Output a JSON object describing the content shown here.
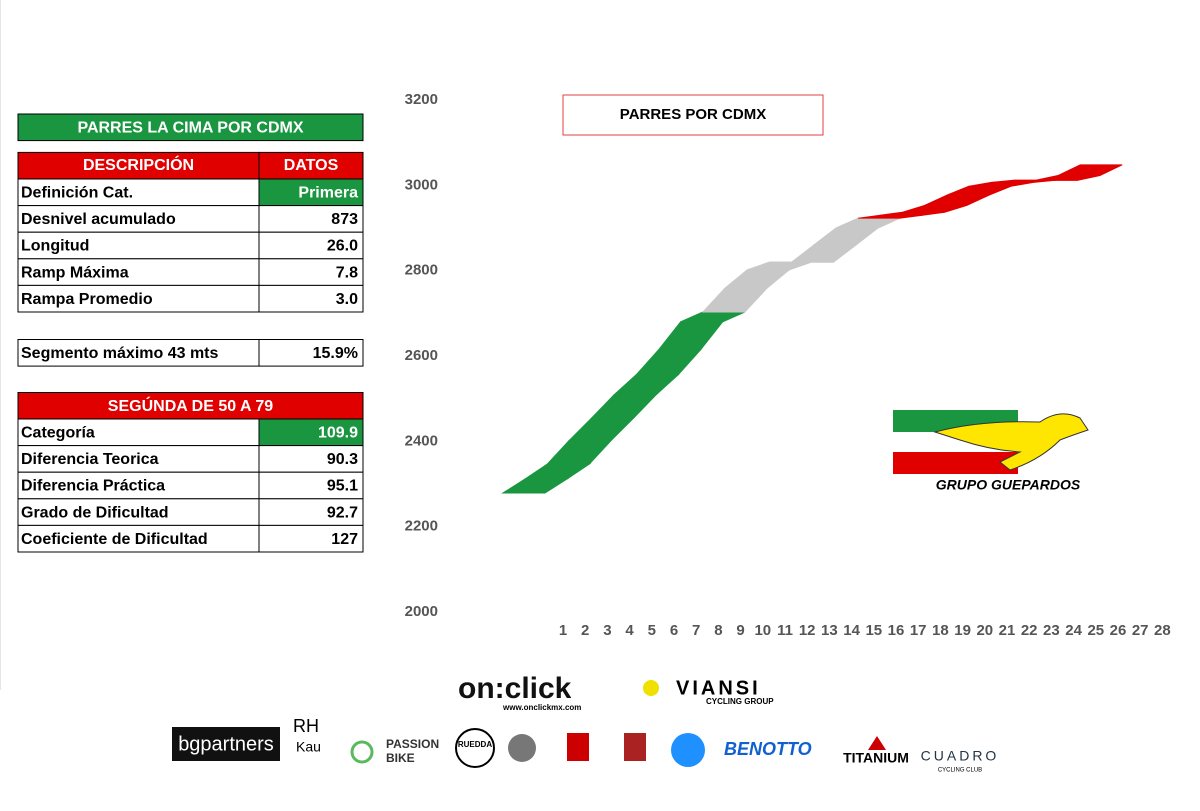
{
  "table": {
    "title": "PARRES LA CIMA POR CDMX",
    "header": [
      "DESCRIPCIÓN",
      "DATOS"
    ],
    "rows": [
      [
        "Definición Cat.",
        "Primera"
      ],
      [
        "Desnivel acumulado",
        "873"
      ],
      [
        "Longitud",
        "26.0"
      ],
      [
        "Ramp Máxima",
        "7.8"
      ],
      [
        "Rampa Promedio",
        "3.0"
      ]
    ]
  },
  "segment": [
    "Segmento máximo 43 mts",
    "15.9%"
  ],
  "table2": {
    "title": "SEGÚNDA DE 50 A 79",
    "rows": [
      [
        "Categoría",
        "109.9"
      ],
      [
        "Diferencia Teorica",
        "90.3"
      ],
      [
        "Diferencia Práctica",
        "95.1"
      ],
      [
        "Grado de Dificultad",
        "92.7"
      ],
      [
        "Coeficiente de Dificultad",
        "127"
      ]
    ]
  },
  "chart_data": {
    "type": "ribbon",
    "title": "PARRES POR CDMX",
    "categories": [
      1,
      2,
      3,
      4,
      5,
      6,
      7,
      8,
      9,
      10,
      11,
      12,
      13,
      14,
      15,
      16,
      17,
      18,
      19,
      20,
      21,
      22,
      23,
      24,
      25,
      26,
      27,
      28
    ],
    "series": [
      {
        "color": "#1a9641",
        "values": [
          2279,
          2312,
          2347,
          2403,
          2455,
          2509,
          2556,
          2614,
          2680,
          2703,
          null,
          null,
          null,
          null,
          null,
          null,
          null,
          null,
          null,
          null,
          null,
          null,
          null,
          null,
          null,
          null,
          null,
          null
        ]
      },
      {
        "color": "#c8c8c8",
        "values": [
          null,
          null,
          null,
          null,
          null,
          null,
          null,
          null,
          null,
          2703,
          2759,
          2802,
          2820,
          2820,
          2860,
          2900,
          2923,
          null,
          null,
          null,
          null,
          null,
          null,
          null,
          null,
          null,
          null,
          null
        ]
      },
      {
        "color": "#e00000",
        "values": [
          null,
          null,
          null,
          null,
          null,
          null,
          null,
          null,
          null,
          null,
          null,
          null,
          null,
          null,
          null,
          null,
          2923,
          2930,
          2937,
          2953,
          2977,
          2998,
          3007,
          3012,
          3012,
          3023,
          3048,
          null
        ]
      }
    ],
    "ylim": [
      2000,
      3200
    ],
    "yticks": [
      2000,
      2200,
      2400,
      2600,
      2800,
      3000,
      3200
    ]
  },
  "brand": "GRUPO GUEPARDOS",
  "logos": [
    "on:click",
    "www.onclickmx.com",
    "VIANSI",
    "CYCLING GROUP",
    "bgpartners",
    "RH",
    "Kau",
    "PASSION",
    "BIKE",
    "RUEDDA",
    "BENOTTO",
    "TITANIUM",
    "CUADRO",
    "CYCLING CLUB"
  ]
}
